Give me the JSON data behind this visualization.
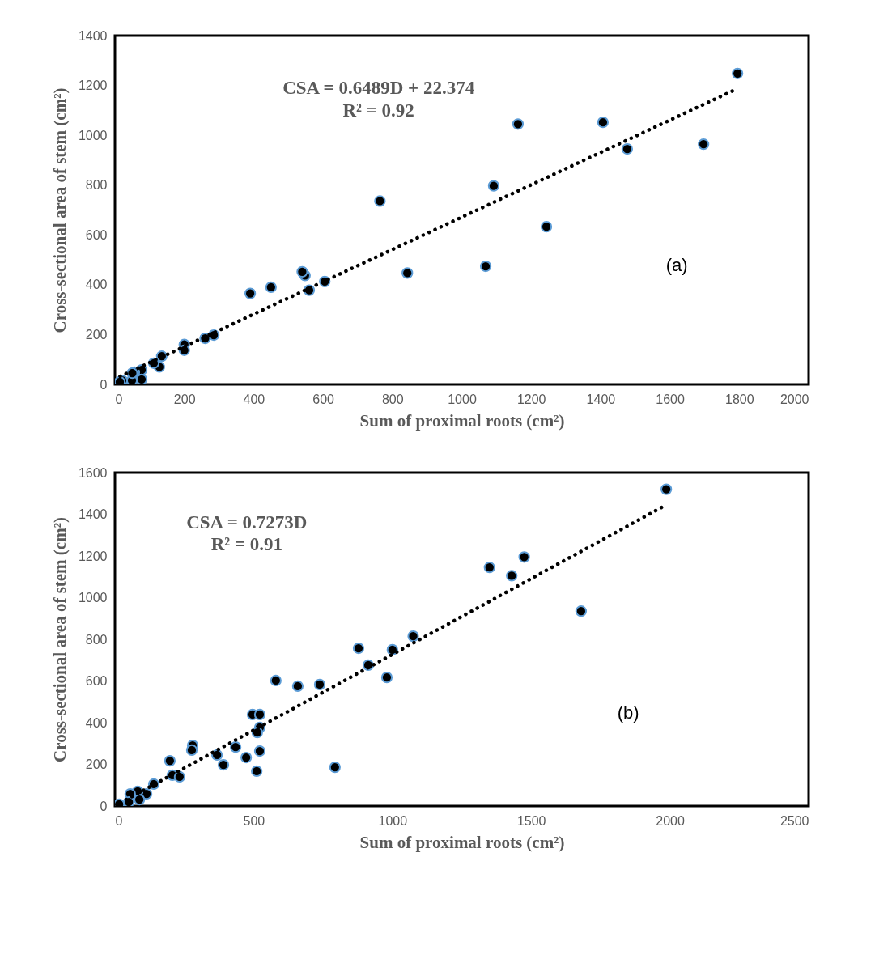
{
  "chart_data": [
    {
      "type": "scatter",
      "xlabel": "Sum of proximal roots  (cm²)",
      "ylabel": "Cross-sectional area of stem (cm²)",
      "annotations": [
        "CSA = 0.6489D + 22.374",
        "R² = 0.92",
        "(a)"
      ],
      "xlim": [
        0,
        2000
      ],
      "xticks": [
        0,
        200,
        400,
        600,
        800,
        1000,
        1200,
        1400,
        1600,
        1800,
        2000
      ],
      "ylim": [
        0,
        1400
      ],
      "yticks": [
        0,
        200,
        400,
        600,
        800,
        1000,
        1200,
        1400
      ],
      "grid": false,
      "marker": "circle",
      "series": [
        {
          "type": "scatter",
          "color": "#000000",
          "x": [
            1795,
            1697,
            1477,
            1407,
            1162,
            1092,
            1244,
            1069,
            843,
            764,
            605,
            560,
            548,
            540,
            450,
            390,
            285,
            260,
            200,
            200,
            135,
            128,
            112,
            77,
            77,
            56,
            49,
            21,
            14,
            50
          ],
          "values": [
            1248,
            964,
            945,
            1052,
            1045,
            797,
            633,
            474,
            447,
            736,
            413,
            378,
            437,
            452,
            390,
            365,
            198,
            185,
            160,
            137,
            113,
            70,
            85,
            58,
            20,
            49,
            16,
            16,
            10,
            45
          ]
        },
        {
          "type": "line",
          "color": "#000000",
          "line_style": "dotted",
          "marker": "none",
          "x": [
            15,
            1790
          ],
          "values": [
            32,
            1184
          ]
        }
      ]
    },
    {
      "type": "scatter",
      "xlabel": "Sum of proximal roots (cm²)",
      "ylabel": "Cross-sectional area of stem (cm²)",
      "annotations": [
        "CSA = 0.7273D",
        "R² = 0.91",
        "(b)"
      ],
      "xlim": [
        0,
        2500
      ],
      "xticks": [
        0,
        500,
        1000,
        1500,
        2000,
        2500
      ],
      "ylim": [
        0,
        1600
      ],
      "yticks": [
        0,
        200,
        400,
        600,
        800,
        1000,
        1200,
        1400,
        1600
      ],
      "grid": false,
      "marker": "circle",
      "series": [
        {
          "type": "scatter",
          "color": "#000000",
          "x": [
            1987,
            1475,
            1430,
            1350,
            1680,
            1075,
            878,
            1000,
            913,
            980,
            580,
            659,
            738,
            496,
            522,
            522,
            513,
            280,
            277,
            435,
            368,
            522,
            473,
            391,
            511,
            793,
            198,
            207,
            233,
            140,
            114,
            82,
            55,
            88,
            50,
            15
          ],
          "values": [
            1520,
            1195,
            1105,
            1145,
            935,
            815,
            757,
            750,
            676,
            617,
            602,
            575,
            583,
            439,
            439,
            377,
            353,
            291,
            268,
            283,
            245,
            264,
            233,
            198,
            167,
            186,
            217,
            148,
            140,
            105,
            58,
            70,
            58,
            31,
            19,
            8
          ]
        },
        {
          "type": "line",
          "color": "#000000",
          "line_style": "dotted",
          "marker": "none",
          "x": [
            20,
            1980
          ],
          "values": [
            15,
            1440
          ]
        }
      ]
    }
  ]
}
